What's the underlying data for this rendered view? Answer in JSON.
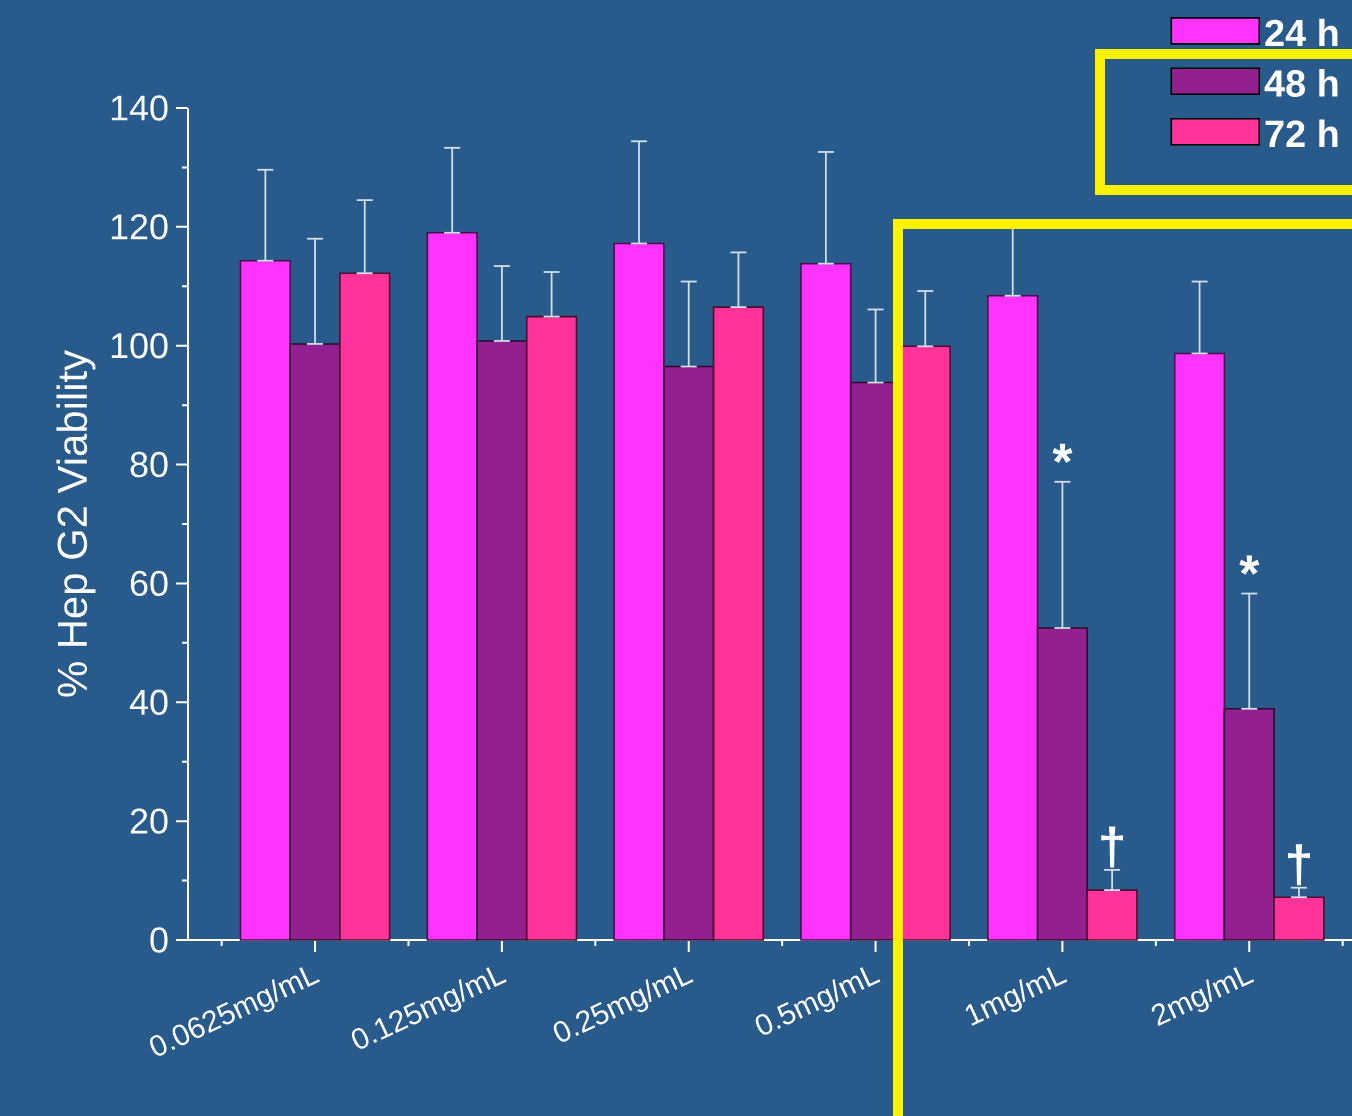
{
  "chart_data": {
    "type": "bar",
    "ylabel": "% Hep G2 Viability",
    "categories": [
      "0.0625mg/mL",
      "0.125mg/mL",
      "0.25mg/mL",
      "0.5mg/mL",
      "1mg/mL",
      "2mg/mL"
    ],
    "series": [
      {
        "name": "24 h",
        "color": "#ff33ff",
        "values": [
          114.3,
          119,
          117.2,
          113.8,
          108.4,
          98.7
        ],
        "errors": [
          [
            114.3,
            129.6
          ],
          [
            119,
            133.3
          ],
          [
            117.2,
            134.4
          ],
          [
            113.8,
            132.6
          ],
          [
            108.4,
            120
          ],
          [
            98.7,
            110.8
          ]
        ]
      },
      {
        "name": "48 h",
        "color": "#92208f",
        "values": [
          100.3,
          100.8,
          96.5,
          93.8,
          52.5,
          38.9
        ],
        "errors": [
          [
            100.3,
            118
          ],
          [
            100.8,
            113.4
          ],
          [
            96.5,
            110.8
          ],
          [
            93.8,
            106.1
          ],
          [
            52.5,
            77.1
          ],
          [
            38.9,
            58.3
          ]
        ]
      },
      {
        "name": "72 h",
        "color": "#ff3399",
        "values": [
          112.2,
          104.9,
          106.5,
          99.9,
          8.4,
          7.2
        ],
        "errors": [
          [
            112.2,
            124.5
          ],
          [
            104.9,
            112.4
          ],
          [
            106.5,
            115.7
          ],
          [
            99.9,
            109.2
          ],
          [
            8.4,
            11.8
          ],
          [
            7.2,
            8.8
          ]
        ]
      }
    ],
    "ylim": [
      0,
      140
    ],
    "yticks": [
      0,
      20,
      40,
      60,
      80,
      100,
      120,
      140
    ],
    "grid": false,
    "legend": "top right",
    "annotations": [
      "*",
      "†",
      "*",
      "†"
    ]
  }
}
